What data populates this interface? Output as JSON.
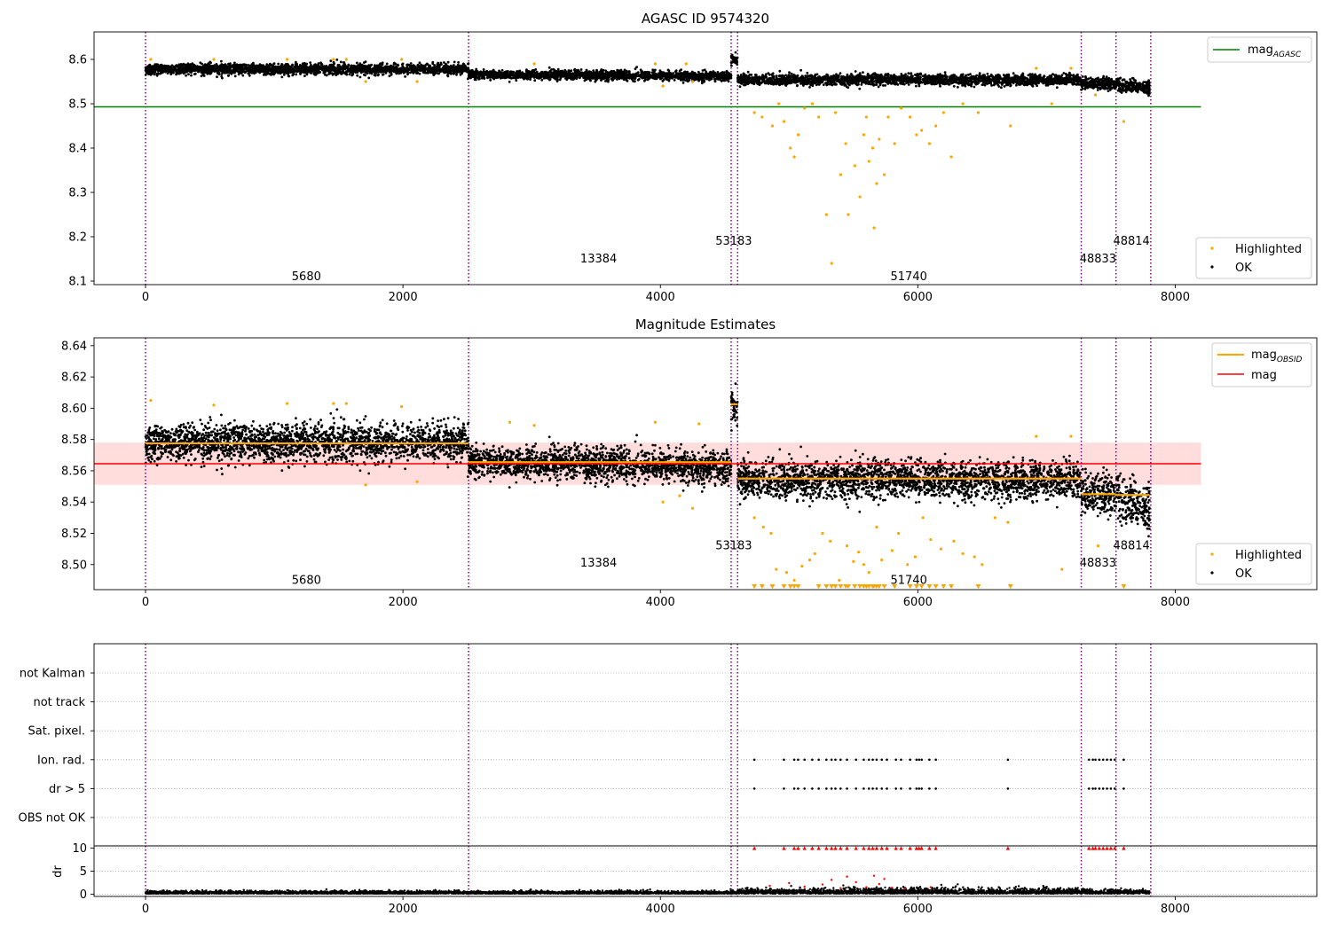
{
  "chart_data": [
    {
      "type": "scatter",
      "title": "AGASC ID 9574320",
      "xlim": [
        -400,
        9100
      ],
      "ylim": [
        8.092,
        8.662
      ],
      "xticks": [
        0,
        2000,
        4000,
        6000,
        8000
      ],
      "yticks": [
        8.1,
        8.2,
        8.3,
        8.4,
        8.5,
        8.6
      ],
      "ytick_labels": [
        "8.1",
        "8.2",
        "8.3",
        "8.4",
        "8.5",
        "8.6"
      ],
      "grid": false,
      "hline": {
        "name": "mag",
        "sub": "AGASC",
        "y": 8.493,
        "x": [
          -400,
          8200
        ],
        "color": "#008000"
      },
      "legend_top": {
        "placement": "top-right",
        "entries": [
          {
            "label": "mag",
            "sub": "AGASC",
            "color": "#008000"
          }
        ]
      },
      "legend_bottom": {
        "placement": "bottom-right",
        "entries": [
          {
            "label": "Highlighted",
            "color": "#ffa500"
          },
          {
            "label": "OK",
            "color": "#000000"
          }
        ]
      },
      "segments": [
        {
          "x0": 0,
          "x1": 2510,
          "mean": 8.578,
          "noise": 0.007,
          "slope": 0.0
        },
        {
          "x0": 2510,
          "x1": 4550,
          "mean": 8.566,
          "noise": 0.006,
          "slope": -0.004
        },
        {
          "x0": 4550,
          "x1": 4600,
          "mean": 8.601,
          "noise": 0.007,
          "slope": 0.0
        },
        {
          "x0": 4600,
          "x1": 7270,
          "mean": 8.554,
          "noise": 0.007,
          "slope": 0.0
        },
        {
          "x0": 7270,
          "x1": 7540,
          "mean": 8.545,
          "noise": 0.007,
          "slope": 0.0
        },
        {
          "x0": 7540,
          "x1": 7800,
          "mean": 8.543,
          "noise": 0.008,
          "slope": -0.006
        }
      ],
      "highlighted": [
        {
          "x": 4730,
          "y": 8.48
        },
        {
          "x": 4790,
          "y": 8.47
        },
        {
          "x": 4870,
          "y": 8.45
        },
        {
          "x": 4920,
          "y": 8.5
        },
        {
          "x": 4960,
          "y": 8.46
        },
        {
          "x": 5010,
          "y": 8.4
        },
        {
          "x": 5040,
          "y": 8.38
        },
        {
          "x": 5070,
          "y": 8.43
        },
        {
          "x": 5120,
          "y": 8.49
        },
        {
          "x": 5180,
          "y": 8.5
        },
        {
          "x": 5230,
          "y": 8.47
        },
        {
          "x": 5290,
          "y": 8.25
        },
        {
          "x": 5330,
          "y": 8.14
        },
        {
          "x": 5360,
          "y": 8.48
        },
        {
          "x": 5400,
          "y": 8.34
        },
        {
          "x": 5440,
          "y": 8.41
        },
        {
          "x": 5460,
          "y": 8.25
        },
        {
          "x": 5510,
          "y": 8.36
        },
        {
          "x": 5550,
          "y": 8.29
        },
        {
          "x": 5580,
          "y": 8.43
        },
        {
          "x": 5600,
          "y": 8.47
        },
        {
          "x": 5620,
          "y": 8.37
        },
        {
          "x": 5650,
          "y": 8.4
        },
        {
          "x": 5660,
          "y": 8.22
        },
        {
          "x": 5680,
          "y": 8.32
        },
        {
          "x": 5700,
          "y": 8.42
        },
        {
          "x": 5740,
          "y": 8.34
        },
        {
          "x": 5770,
          "y": 8.47
        },
        {
          "x": 5820,
          "y": 8.41
        },
        {
          "x": 5870,
          "y": 8.49
        },
        {
          "x": 5940,
          "y": 8.47
        },
        {
          "x": 5990,
          "y": 8.43
        },
        {
          "x": 6030,
          "y": 8.44
        },
        {
          "x": 6090,
          "y": 8.41
        },
        {
          "x": 6140,
          "y": 8.45
        },
        {
          "x": 6200,
          "y": 8.48
        },
        {
          "x": 6260,
          "y": 8.38
        },
        {
          "x": 6350,
          "y": 8.5
        },
        {
          "x": 6470,
          "y": 8.48
        },
        {
          "x": 6720,
          "y": 8.45
        },
        {
          "x": 7040,
          "y": 8.5
        },
        {
          "x": 7380,
          "y": 8.52
        },
        {
          "x": 7600,
          "y": 8.46
        },
        {
          "x": 40,
          "y": 8.6
        },
        {
          "x": 530,
          "y": 8.6
        },
        {
          "x": 1100,
          "y": 8.6
        },
        {
          "x": 1460,
          "y": 8.6
        },
        {
          "x": 1560,
          "y": 8.6
        },
        {
          "x": 1710,
          "y": 8.55
        },
        {
          "x": 1990,
          "y": 8.6
        },
        {
          "x": 2110,
          "y": 8.55
        },
        {
          "x": 3020,
          "y": 8.59
        },
        {
          "x": 3960,
          "y": 8.59
        },
        {
          "x": 4200,
          "y": 8.59
        },
        {
          "x": 4020,
          "y": 8.54
        },
        {
          "x": 4250,
          "y": 8.55
        },
        {
          "x": 6920,
          "y": 8.58
        },
        {
          "x": 7190,
          "y": 8.58
        }
      ],
      "obsids": [
        {
          "label": "5680",
          "x": 1250,
          "y": 8.112
        },
        {
          "label": "13384",
          "x": 3520,
          "y": 8.152
        },
        {
          "label": "53183",
          "x": 4570,
          "y": 8.192
        },
        {
          "label": "51740",
          "x": 5930,
          "y": 8.112
        },
        {
          "label": "48833",
          "x": 7400,
          "y": 8.152
        },
        {
          "label": "48814",
          "x": 7660,
          "y": 8.192
        }
      ],
      "vlines": [
        0,
        2510,
        4550,
        4600,
        7270,
        7540,
        7810
      ]
    },
    {
      "type": "scatter",
      "title": "Magnitude Estimates",
      "xlim": [
        -400,
        9100
      ],
      "ylim": [
        8.484,
        8.645
      ],
      "xticks": [
        0,
        2000,
        4000,
        6000,
        8000
      ],
      "yticks": [
        8.5,
        8.52,
        8.54,
        8.56,
        8.58,
        8.6,
        8.62,
        8.64
      ],
      "ytick_labels": [
        "8.50",
        "8.52",
        "8.54",
        "8.56",
        "8.58",
        "8.60",
        "8.62",
        "8.64"
      ],
      "grid": false,
      "band": {
        "y0": 8.551,
        "y1": 8.578,
        "x": [
          -400,
          8200
        ],
        "color": "#ffdddd"
      },
      "hline": {
        "name": "mag",
        "y": 8.5645,
        "x": [
          -400,
          8200
        ],
        "color": "#ff0000"
      },
      "obs_means": [
        {
          "x0": 0,
          "x1": 2510,
          "y": 8.5775
        },
        {
          "x0": 2510,
          "x1": 4550,
          "y": 8.5655
        },
        {
          "x0": 4550,
          "x1": 4600,
          "y": 8.6025
        },
        {
          "x0": 4600,
          "x1": 7270,
          "y": 8.555
        },
        {
          "x0": 7270,
          "x1": 7540,
          "y": 8.545
        },
        {
          "x0": 7540,
          "x1": 7800,
          "y": 8.5445
        }
      ],
      "legend_top": {
        "placement": "top-right",
        "entries": [
          {
            "label": "mag",
            "sub": "OBSID",
            "color": "#ffa500"
          },
          {
            "label": "mag",
            "color": "#ff0000"
          }
        ]
      },
      "legend_bottom": {
        "placement": "bottom-right",
        "entries": [
          {
            "label": "Highlighted",
            "color": "#ffa500"
          },
          {
            "label": "OK",
            "color": "#000000"
          }
        ]
      },
      "highlighted": [
        {
          "x": 40,
          "y": 8.605
        },
        {
          "x": 530,
          "y": 8.602
        },
        {
          "x": 1100,
          "y": 8.603
        },
        {
          "x": 1460,
          "y": 8.603
        },
        {
          "x": 1560,
          "y": 8.603
        },
        {
          "x": 1710,
          "y": 8.551
        },
        {
          "x": 1990,
          "y": 8.601
        },
        {
          "x": 2110,
          "y": 8.553
        },
        {
          "x": 2830,
          "y": 8.591
        },
        {
          "x": 3020,
          "y": 8.589
        },
        {
          "x": 3960,
          "y": 8.591
        },
        {
          "x": 4020,
          "y": 8.54
        },
        {
          "x": 4150,
          "y": 8.544
        },
        {
          "x": 4250,
          "y": 8.536
        },
        {
          "x": 4300,
          "y": 8.59
        },
        {
          "x": 6920,
          "y": 8.582
        },
        {
          "x": 7190,
          "y": 8.582
        },
        {
          "x": 7400,
          "y": 8.512
        },
        {
          "x": 4730,
          "y": 8.53
        },
        {
          "x": 4800,
          "y": 8.524
        },
        {
          "x": 4860,
          "y": 8.52
        },
        {
          "x": 4900,
          "y": 8.497
        },
        {
          "x": 4980,
          "y": 8.495
        },
        {
          "x": 5040,
          "y": 8.49
        },
        {
          "x": 5100,
          "y": 8.499
        },
        {
          "x": 5160,
          "y": 8.503
        },
        {
          "x": 5200,
          "y": 8.507
        },
        {
          "x": 5260,
          "y": 8.52
        },
        {
          "x": 5320,
          "y": 8.515
        },
        {
          "x": 5390,
          "y": 8.49
        },
        {
          "x": 5450,
          "y": 8.512
        },
        {
          "x": 5500,
          "y": 8.502
        },
        {
          "x": 5540,
          "y": 8.508
        },
        {
          "x": 5580,
          "y": 8.5
        },
        {
          "x": 5620,
          "y": 8.495
        },
        {
          "x": 5680,
          "y": 8.524
        },
        {
          "x": 5720,
          "y": 8.503
        },
        {
          "x": 5800,
          "y": 8.509
        },
        {
          "x": 5850,
          "y": 8.52
        },
        {
          "x": 5920,
          "y": 8.5
        },
        {
          "x": 5980,
          "y": 8.505
        },
        {
          "x": 6040,
          "y": 8.53
        },
        {
          "x": 6100,
          "y": 8.516
        },
        {
          "x": 6180,
          "y": 8.51
        },
        {
          "x": 6280,
          "y": 8.515
        },
        {
          "x": 6350,
          "y": 8.507
        },
        {
          "x": 6440,
          "y": 8.505
        },
        {
          "x": 6500,
          "y": 8.5
        },
        {
          "x": 6600,
          "y": 8.53
        },
        {
          "x": 6700,
          "y": 8.527
        },
        {
          "x": 7120,
          "y": 8.497
        }
      ],
      "below_range": [
        4730,
        4790,
        4870,
        4960,
        5010,
        5040,
        5070,
        5230,
        5290,
        5330,
        5360,
        5400,
        5440,
        5460,
        5510,
        5550,
        5580,
        5600,
        5620,
        5650,
        5660,
        5680,
        5700,
        5740,
        5820,
        5940,
        5990,
        6030,
        6090,
        6140,
        6200,
        6260,
        6470,
        6720,
        7600
      ],
      "obsids": [
        {
          "label": "5680",
          "x": 1250,
          "y": 8.4905
        },
        {
          "label": "13384",
          "x": 3520,
          "y": 8.5015
        },
        {
          "label": "53183",
          "x": 4570,
          "y": 8.5125
        },
        {
          "label": "51740",
          "x": 5930,
          "y": 8.4905
        },
        {
          "label": "48833",
          "x": 7400,
          "y": 8.5015
        },
        {
          "label": "48814",
          "x": 7660,
          "y": 8.5125
        }
      ],
      "vlines": [
        0,
        2510,
        4550,
        4600,
        7270,
        7540,
        7810
      ]
    },
    {
      "type": "scatter",
      "xlim": [
        -400,
        9100
      ],
      "categories": [
        "OBS not OK",
        "dr > 5",
        "Ion. rad.",
        "Sat. pixel.",
        "not track",
        "not Kalman"
      ],
      "flag_x": [
        4730,
        4960,
        5040,
        5070,
        5120,
        5180,
        5230,
        5290,
        5330,
        5360,
        5400,
        5450,
        5520,
        5580,
        5620,
        5650,
        5680,
        5720,
        5760,
        5830,
        5870,
        5940,
        5990,
        6010,
        6030,
        6090,
        6140,
        6700,
        7330,
        7360,
        7380,
        7410,
        7440,
        7470,
        7500,
        7530,
        7600
      ],
      "flag_rows": [
        "dr > 5",
        "Ion. rad."
      ],
      "vlines": [
        0,
        2510,
        4550,
        4600,
        7270,
        7540,
        7810
      ]
    },
    {
      "type": "scatter",
      "ylabel": "dr",
      "xlim": [
        -400,
        9100
      ],
      "ylim": [
        -0.5,
        10.5
      ],
      "xticks": [
        0,
        2000,
        4000,
        6000,
        8000
      ],
      "yticks": [
        0,
        5,
        10
      ],
      "ytick_labels": [
        "0",
        "5",
        "10"
      ],
      "clip_value": 10,
      "clip_color": "#ff0000",
      "outliers": [
        {
          "x": 4850,
          "y": 1.8
        },
        {
          "x": 5000,
          "y": 2.4
        },
        {
          "x": 5120,
          "y": 1.6
        },
        {
          "x": 5260,
          "y": 2.1
        },
        {
          "x": 5330,
          "y": 3.1
        },
        {
          "x": 5400,
          "y": 1.3
        },
        {
          "x": 5450,
          "y": 3.8
        },
        {
          "x": 5520,
          "y": 2.6
        },
        {
          "x": 5600,
          "y": 1.5
        },
        {
          "x": 5660,
          "y": 4.0
        },
        {
          "x": 5700,
          "y": 2.2
        },
        {
          "x": 5740,
          "y": 3.3
        },
        {
          "x": 5800,
          "y": 1.4
        },
        {
          "x": 5900,
          "y": 1.2
        },
        {
          "x": 6100,
          "y": 1.5
        }
      ],
      "vlines": [
        0,
        2510,
        4550,
        4600,
        7270,
        7540,
        7810
      ]
    }
  ]
}
